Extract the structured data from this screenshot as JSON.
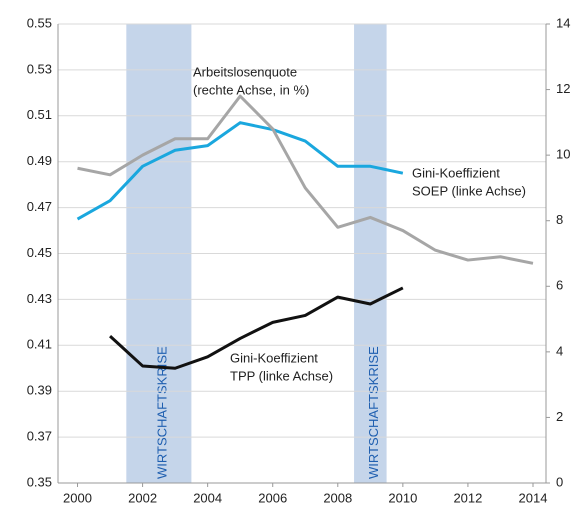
{
  "chart_data": {
    "type": "line",
    "x": [
      2000,
      2001,
      2002,
      2003,
      2004,
      2005,
      2006,
      2007,
      2008,
      2009,
      2010,
      2011,
      2012,
      2013,
      2014
    ],
    "xlim": [
      1999.4,
      2014.4
    ],
    "xticks": [
      2000,
      2002,
      2004,
      2006,
      2008,
      2010,
      2012,
      2014
    ],
    "ylim": [
      0.35,
      0.55
    ],
    "yticks": [
      0.35,
      0.37,
      0.39,
      0.41,
      0.43,
      0.45,
      0.47,
      0.49,
      0.51,
      0.53,
      0.55
    ],
    "y2lim": [
      0,
      14
    ],
    "y2ticks": [
      0,
      2,
      4,
      6,
      8,
      10,
      12,
      14
    ],
    "grid": true,
    "series": [
      {
        "color": "#1aa7de",
        "values": [
          0.465,
          0.473,
          0.488,
          0.495,
          0.497,
          0.507,
          0.504,
          0.499,
          0.488,
          0.488,
          0.485,
          null,
          null,
          null,
          null
        ]
      },
      {
        "color": "#a6a6a6",
        "axis": "y2",
        "values": [
          9.6,
          9.4,
          10.0,
          10.5,
          10.5,
          11.8,
          10.8,
          9.0,
          7.8,
          8.1,
          7.7,
          7.1,
          6.8,
          6.9,
          6.7
        ]
      },
      {
        "color": "#111111",
        "values": [
          null,
          0.414,
          0.401,
          0.4,
          0.405,
          0.413,
          0.42,
          0.423,
          0.431,
          0.428,
          0.435,
          null,
          null,
          null,
          null
        ]
      }
    ],
    "annotations": [
      {
        "lines": [
          "Gini-Koeffizient",
          "SOEP (linke Achse)"
        ]
      },
      {
        "lines": [
          "Arbeitslosenquote",
          "(rechte Achse, in %)"
        ]
      },
      {
        "lines": [
          "Gini-Koeffizient",
          "TPP (linke Achse)"
        ]
      }
    ],
    "shaded_periods": [
      {
        "start": 2001.5,
        "end": 2003.5,
        "label": "WIRTSCHAFTSKRISE",
        "color": "#c5d5ea"
      },
      {
        "start": 2008.5,
        "end": 2009.5,
        "label": "WIRTSCHAFTSKRISE",
        "color": "#c5d5ea"
      }
    ]
  }
}
